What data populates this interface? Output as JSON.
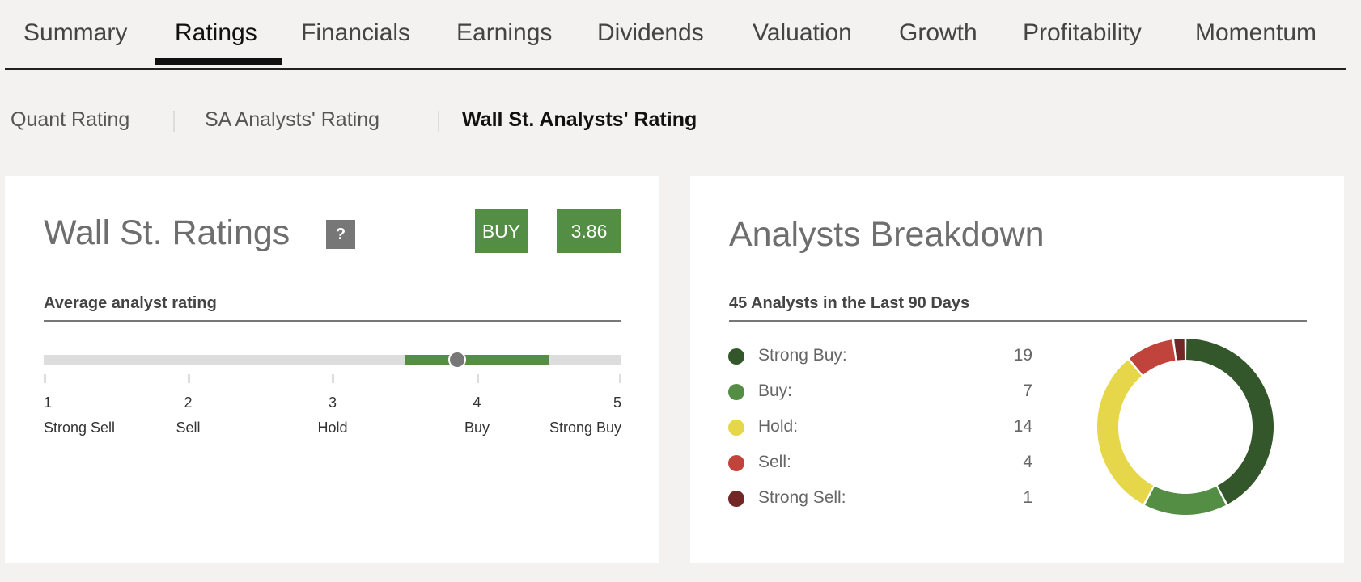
{
  "tabs": [
    {
      "label": "Summary",
      "active": false
    },
    {
      "label": "Ratings",
      "active": true
    },
    {
      "label": "Financials",
      "active": false
    },
    {
      "label": "Earnings",
      "active": false
    },
    {
      "label": "Dividends",
      "active": false
    },
    {
      "label": "Valuation",
      "active": false
    },
    {
      "label": "Growth",
      "active": false
    },
    {
      "label": "Profitability",
      "active": false
    },
    {
      "label": "Momentum",
      "active": false
    }
  ],
  "subtabs": [
    {
      "label": "Quant Rating",
      "active": false
    },
    {
      "label": "SA Analysts' Rating",
      "active": false
    },
    {
      "label": "Wall St. Analysts' Rating",
      "active": true
    }
  ],
  "ratings_card": {
    "title": "Wall St. Ratings",
    "help_label": "?",
    "rating_label": "BUY",
    "rating_score": "3.86",
    "subtitle": "Average analyst rating",
    "average_value": 3.86,
    "range_low": 3.5,
    "range_high": 4.5,
    "scale": [
      {
        "value": "1",
        "label": "Strong Sell"
      },
      {
        "value": "2",
        "label": "Sell"
      },
      {
        "value": "3",
        "label": "Hold"
      },
      {
        "value": "4",
        "label": "Buy"
      },
      {
        "value": "5",
        "label": "Strong Buy"
      }
    ]
  },
  "breakdown_card": {
    "title": "Analysts Breakdown",
    "subtitle": "45 Analysts in the Last 90 Days"
  },
  "chart_data": {
    "type": "pie",
    "categories": [
      "Strong Buy:",
      "Buy:",
      "Hold:",
      "Sell:",
      "Strong Sell:"
    ],
    "values": [
      19,
      7,
      14,
      4,
      1
    ],
    "colors": [
      "#33562a",
      "#548d44",
      "#e6d64a",
      "#c0443b",
      "#722626"
    ],
    "donut": true
  },
  "colors": {
    "accent_green": "#548d44",
    "background": "#f3f2f0",
    "track": "#dddddd"
  }
}
